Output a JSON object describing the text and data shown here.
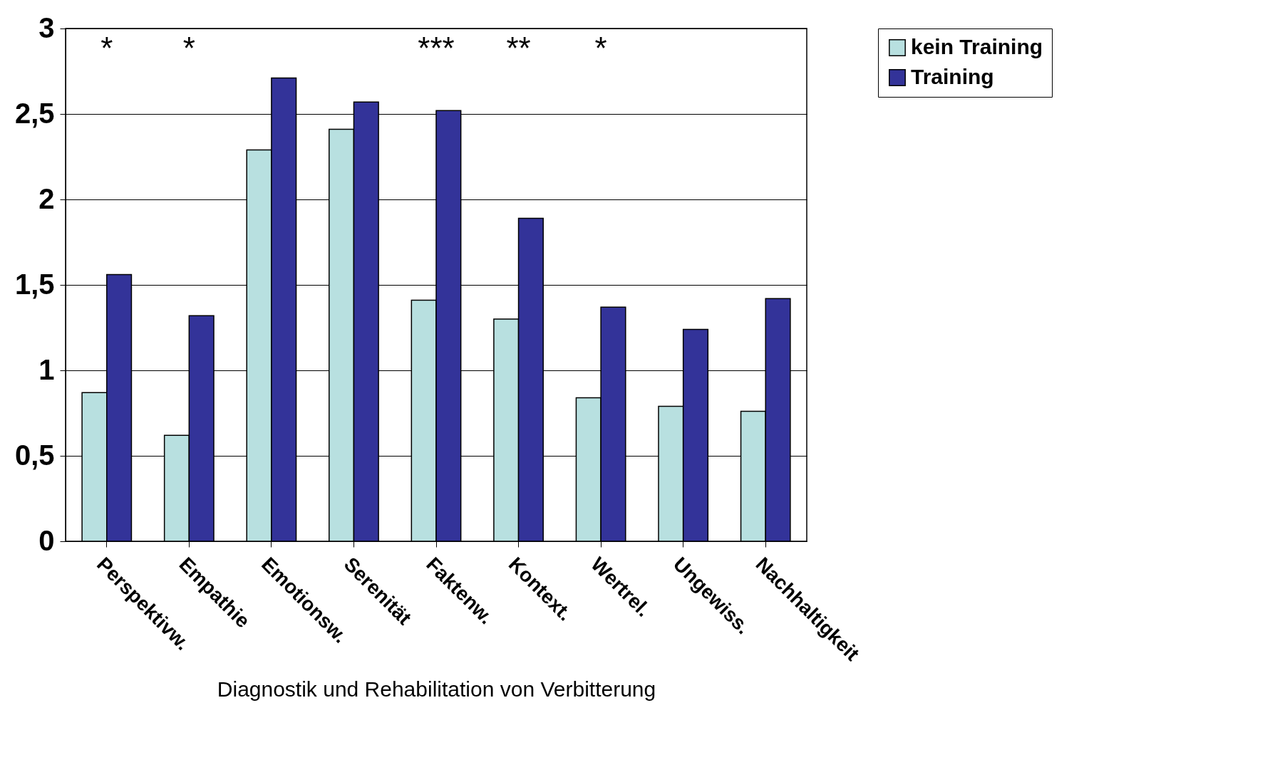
{
  "chart_data": {
    "type": "bar",
    "xlabel": "Diagnostik und Rehabilitation von Verbitterung",
    "categories": [
      "Perspektivw.",
      "Empathie",
      "Emotionsw.",
      "Serenität",
      "Faktenw.",
      "Kontext.",
      "Wertrel.",
      "Ungewiss.",
      "Nachhaltigkeit"
    ],
    "series": [
      {
        "name": "kein Training",
        "color": "#b8e0e0",
        "values": [
          0.87,
          0.62,
          2.29,
          2.41,
          1.41,
          1.3,
          0.84,
          0.79,
          0.76
        ]
      },
      {
        "name": "Training",
        "color": "#333399",
        "values": [
          1.56,
          1.32,
          2.71,
          2.57,
          2.52,
          1.89,
          1.37,
          1.24,
          1.42
        ]
      }
    ],
    "ylim": [
      0,
      3
    ],
    "yticks": [
      0,
      {
        "value": 0.5,
        "label": "0,5"
      },
      1,
      {
        "value": 1.5,
        "label": "1,5"
      },
      2,
      {
        "value": 2.5,
        "label": "2,5"
      },
      3
    ],
    "grid": "y",
    "legend": "right",
    "annotations": [
      "*",
      "*",
      "***",
      "**",
      "*"
    ]
  }
}
